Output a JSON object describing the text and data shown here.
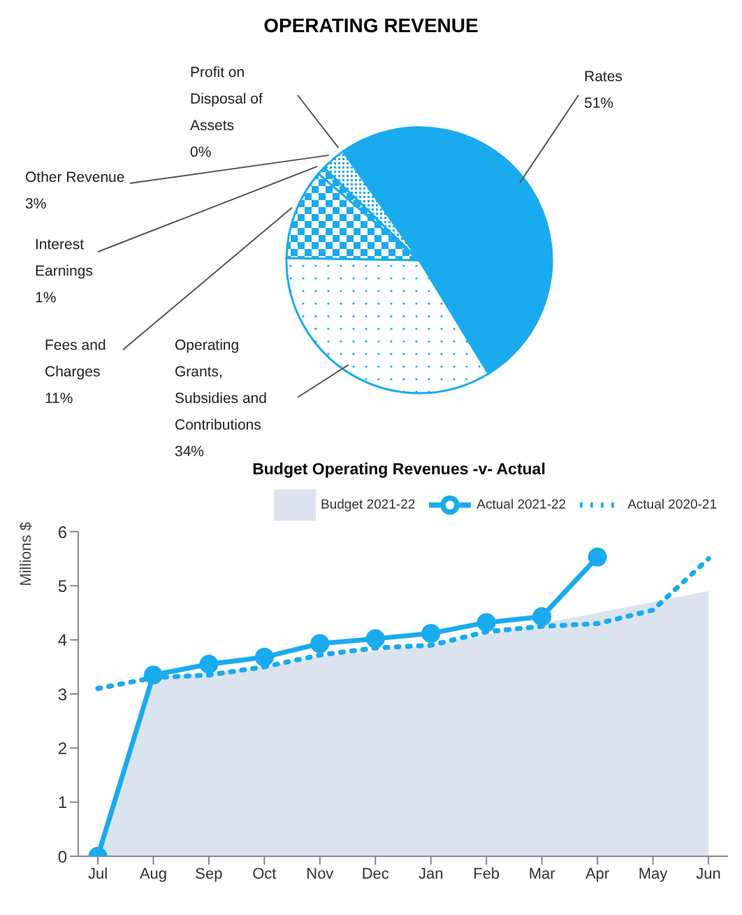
{
  "chart_data": [
    {
      "type": "pie",
      "title": "OPERATING REVENUE",
      "categories": [
        "Rates",
        "Operating Grants, Subsidies and Contributions",
        "Fees and Charges",
        "Interest Earnings",
        "Other Revenue",
        "Profit on Disposal of Assets"
      ],
      "values": [
        51,
        34,
        11,
        1,
        3,
        0
      ],
      "colors": [
        "#1aabee",
        "#1aabee",
        "#1aabee",
        "#1aabee",
        "#1aabee",
        "#1aabee"
      ],
      "value_labels": [
        "51%",
        "34%",
        "11%",
        "1%",
        "3%",
        "0%"
      ],
      "legend": false
    },
    {
      "type": "line",
      "title": "Budget Operating Revenues -v- Actual",
      "ylabel": "Millions $",
      "categories": [
        "Jul",
        "Aug",
        "Sep",
        "Oct",
        "Nov",
        "Dec",
        "Jan",
        "Feb",
        "Mar",
        "Apr",
        "May",
        "Jun"
      ],
      "ylim": [
        0,
        6
      ],
      "yticks": [
        0,
        1,
        2,
        3,
        4,
        5,
        6
      ],
      "grid": false,
      "legend": "top",
      "series": [
        {
          "name": "Budget 2021-22",
          "type": "area",
          "color": "#dbe3ee",
          "values": [
            0,
            3.3,
            3.4,
            3.5,
            3.7,
            3.8,
            3.9,
            4.1,
            4.3,
            4.5,
            4.7,
            4.9
          ]
        },
        {
          "name": "Actual 2021-22",
          "type": "line",
          "color": "#1aabee",
          "marker": "circle",
          "line_style": "solid",
          "values": [
            0,
            3.35,
            3.55,
            3.68,
            3.93,
            4.02,
            4.12,
            4.32,
            4.43,
            5.53,
            null,
            null
          ]
        },
        {
          "name": "Actual 2020-21",
          "type": "line",
          "color": "#1aabee",
          "marker": "none",
          "line_style": "dotted",
          "values": [
            3.1,
            3.3,
            3.35,
            3.5,
            3.72,
            3.85,
            3.9,
            4.15,
            4.25,
            4.3,
            4.55,
            5.5
          ]
        }
      ]
    }
  ]
}
